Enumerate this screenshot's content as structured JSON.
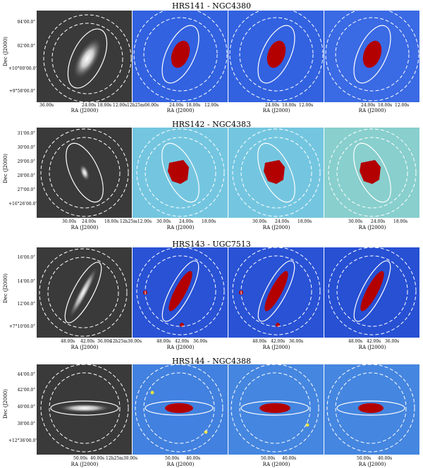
{
  "galaxies": [
    {
      "title": "HRS141 - NGC4380",
      "dec_label": "Dec (J2000)",
      "dec_ticks": [
        "04'00.0\"",
        "02'00.0\"",
        "+10°00'00.0\"",
        "+9°58'00.0\""
      ],
      "ra_label": "RA (J2000)",
      "panels": [
        {
          "ra_ticks": [
            "36.00s",
            "24.00s",
            "18.00s",
            "12.00s",
            "12h25m06.00s"
          ]
        },
        {
          "ra_ticks": [
            "24.00s",
            "18.00s",
            "12.00s"
          ]
        },
        {
          "ra_ticks": [
            "24.00s",
            "18.00s",
            "12.00s"
          ]
        },
        {
          "ra_ticks": [
            "24.00s",
            "18.00s",
            "12.00s"
          ]
        }
      ]
    },
    {
      "title": "HRS142 - NGC4383",
      "dec_label": "Dec (J2000)",
      "dec_ticks": [
        "31'00.0\"",
        "30'00.0\"",
        "29'00.0\"",
        "28'00.0\"",
        "27'00.0\"",
        "+16°26'00.0\""
      ],
      "ra_label": "RA (J2000)",
      "panels": [
        {
          "ra_ticks": [
            "30.00s",
            "24.00s",
            "18.00s",
            "12h25m12.00s"
          ]
        },
        {
          "ra_ticks": [
            "30.00s",
            "24.00s",
            "18.00s"
          ]
        },
        {
          "ra_ticks": [
            "30.00s",
            "24.00s",
            "18.00s"
          ]
        },
        {
          "ra_ticks": [
            "30.00s",
            "24.00s",
            "18.00s"
          ]
        }
      ]
    },
    {
      "title": "HRS143 - UGC7513",
      "dec_label": "Dec (J2000)",
      "dec_ticks": [
        "16'00.0\"",
        "14'00.0\"",
        "12'00.0\"",
        "+7°10'00.0\""
      ],
      "ra_label": "RA (J2000)",
      "panels": [
        {
          "ra_ticks": [
            "48.00s",
            "42.00s",
            "36.00s",
            "12h25m30.00s"
          ]
        },
        {
          "ra_ticks": [
            "48.00s",
            "42.00s",
            "36.00s"
          ]
        },
        {
          "ra_ticks": [
            "48.00s",
            "42.00s",
            "36.00s"
          ]
        },
        {
          "ra_ticks": [
            "48.00s",
            "42.00s",
            "36.00s"
          ]
        }
      ]
    },
    {
      "title": "HRS144 - NGC4388",
      "dec_label": "Dec (J2000)",
      "dec_ticks": [
        "44'00.0\"",
        "42'00.0\"",
        "40'00.0\"",
        "38'00.0\"",
        "+12°36'00.0\""
      ],
      "ra_label": "RA (J2000)",
      "panels": [
        {
          "ra_ticks": [
            "50.00s",
            "40.00s",
            "12h25m30.00s"
          ]
        },
        {
          "ra_ticks": [
            "50.00s",
            "40.00s"
          ]
        },
        {
          "ra_ticks": [
            "50.00s",
            "40.00s"
          ]
        },
        {
          "ra_ticks": [
            "50.00s",
            "40.00s"
          ]
        }
      ]
    }
  ],
  "colors": {
    "optical_bg": "#3a3a3a",
    "map_bg": "#2a55d8",
    "map_hot": "#b30000",
    "overlay": "#ffffff"
  }
}
